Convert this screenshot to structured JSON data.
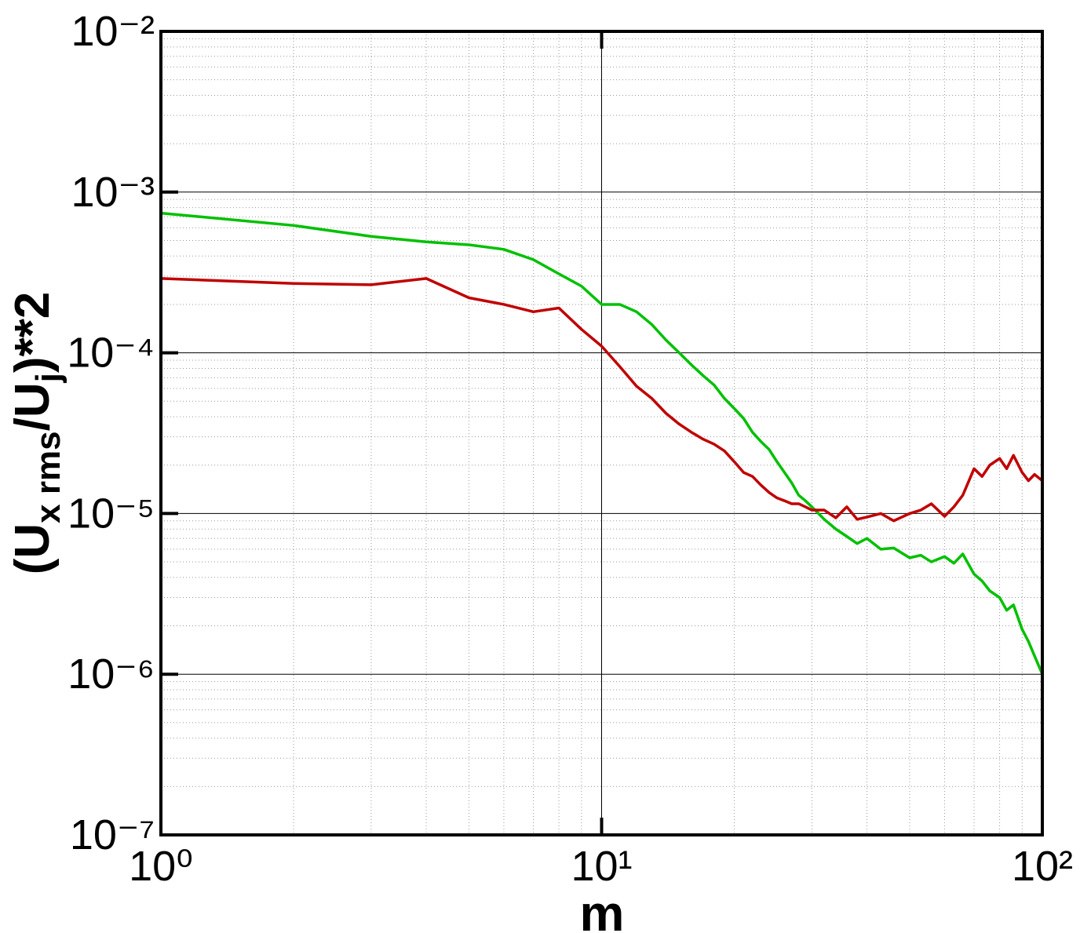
{
  "chart_data": {
    "type": "line",
    "xlabel": "m",
    "ylabel_parts": [
      {
        "text": "(U"
      },
      {
        "text": "x rms",
        "sub": true
      },
      {
        "text": "/U"
      },
      {
        "text": "j",
        "sub": true
      },
      {
        "text": ")**2"
      }
    ],
    "x": [
      1,
      2,
      3,
      4,
      5,
      6,
      7,
      8,
      9,
      10,
      11,
      12,
      13,
      14,
      15,
      16,
      17,
      18,
      19,
      20,
      21,
      22,
      23,
      24,
      25,
      26,
      27,
      28,
      29,
      30,
      32,
      34,
      36,
      38,
      40,
      43,
      46,
      50,
      53,
      56,
      60,
      63,
      66,
      70,
      73,
      76,
      80,
      83,
      86,
      90,
      93,
      96,
      100
    ],
    "series": [
      {
        "color": "#00c000",
        "values": [
          0.00074,
          0.00062,
          0.00053,
          0.00049,
          0.00047,
          0.00044,
          0.00038,
          0.00031,
          0.00026,
          0.0002,
          0.0002,
          0.00018,
          0.00015,
          0.00012,
          0.0001,
          8.4e-05,
          7.2e-05,
          6.3e-05,
          5.2e-05,
          4.5e-05,
          3.9e-05,
          3.2e-05,
          2.8e-05,
          2.5e-05,
          2.1e-05,
          1.8e-05,
          1.55e-05,
          1.3e-05,
          1.2e-05,
          1.1e-05,
          9.2e-06,
          8e-06,
          7.2e-06,
          6.5e-06,
          7e-06,
          6e-06,
          6.1e-06,
          5.3e-06,
          5.5e-06,
          5e-06,
          5.4e-06,
          4.9e-06,
          5.6e-06,
          4.2e-06,
          3.8e-06,
          3.3e-06,
          3e-06,
          2.5e-06,
          2.7e-06,
          1.9e-06,
          1.6e-06,
          1.3e-06,
          1e-06
        ]
      },
      {
        "color": "#c00000",
        "values": [
          0.00029,
          0.00027,
          0.000265,
          0.00029,
          0.00022,
          0.0002,
          0.00018,
          0.00019,
          0.00014,
          0.00011,
          8.2e-05,
          6.2e-05,
          5.2e-05,
          4.2e-05,
          3.6e-05,
          3.2e-05,
          2.9e-05,
          2.7e-05,
          2.45e-05,
          2.1e-05,
          1.8e-05,
          1.7e-05,
          1.5e-05,
          1.35e-05,
          1.25e-05,
          1.2e-05,
          1.15e-05,
          1.15e-05,
          1.1e-05,
          1.05e-05,
          1.05e-05,
          9.4e-06,
          1.1e-05,
          9.2e-06,
          9.5e-06,
          1e-05,
          9e-06,
          1e-05,
          1.05e-05,
          1.15e-05,
          9.6e-06,
          1.1e-05,
          1.3e-05,
          1.9e-05,
          1.7e-05,
          2e-05,
          2.2e-05,
          1.9e-05,
          2.3e-05,
          1.8e-05,
          1.6e-05,
          1.75e-05,
          1.6e-05
        ]
      }
    ],
    "xscale": "log",
    "yscale": "log",
    "xlim": [
      1,
      100
    ],
    "ylim": [
      1e-07,
      0.01
    ],
    "xticks": [
      {
        "value": 1,
        "label": "10⁰"
      },
      {
        "value": 10,
        "label": "10¹"
      },
      {
        "value": 100,
        "label": "10²"
      }
    ],
    "yticks": [
      {
        "value": 1e-07,
        "label": "10⁻⁷"
      },
      {
        "value": 1e-06,
        "label": "10⁻⁶"
      },
      {
        "value": 1e-05,
        "label": "10⁻⁵"
      },
      {
        "value": 0.0001,
        "label": "10⁻⁴"
      },
      {
        "value": 0.001,
        "label": "10⁻³"
      },
      {
        "value": 0.01,
        "label": "10⁻²"
      }
    ],
    "xminor": [
      2,
      3,
      4,
      5,
      6,
      7,
      8,
      9,
      20,
      30,
      40,
      50,
      60,
      70,
      80,
      90
    ],
    "yminor": [
      2e-07,
      3e-07,
      4e-07,
      5e-07,
      6e-07,
      7e-07,
      8e-07,
      9e-07,
      2e-06,
      3e-06,
      4e-06,
      5e-06,
      6e-06,
      7e-06,
      8e-06,
      9e-06,
      2e-05,
      3e-05,
      4e-05,
      5e-05,
      6e-05,
      7e-05,
      8e-05,
      9e-05,
      0.0002,
      0.0003,
      0.0004,
      0.0005,
      0.0006,
      0.0007,
      0.0008,
      0.0009,
      0.002,
      0.003,
      0.004,
      0.005,
      0.006,
      0.007,
      0.008,
      0.009
    ],
    "grid": true
  }
}
